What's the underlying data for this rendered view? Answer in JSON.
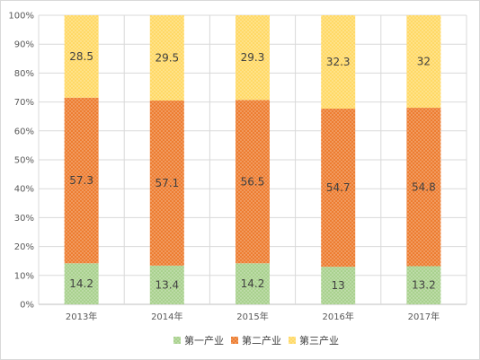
{
  "chart_data": {
    "type": "bar",
    "stacked": true,
    "percent_stacked": true,
    "categories": [
      "2013年",
      "2014年",
      "2015年",
      "2016年",
      "2017年"
    ],
    "series": [
      {
        "name": "第一产业",
        "values": [
          14.2,
          13.4,
          14.2,
          13,
          13.2
        ],
        "color": "#a9d18e"
      },
      {
        "name": "第二产业",
        "values": [
          57.3,
          57.1,
          56.5,
          54.7,
          54.8
        ],
        "color": "#ed7d31"
      },
      {
        "name": "第三产业",
        "values": [
          28.5,
          29.5,
          29.3,
          32.3,
          32
        ],
        "color": "#ffd966"
      }
    ],
    "y_ticks": [
      "0%",
      "10%",
      "20%",
      "30%",
      "40%",
      "50%",
      "60%",
      "70%",
      "80%",
      "90%",
      "100%"
    ],
    "ylim": [
      0,
      100
    ],
    "grid": true,
    "legend": "bottom-center",
    "title": "",
    "xlabel": "",
    "ylabel": ""
  }
}
